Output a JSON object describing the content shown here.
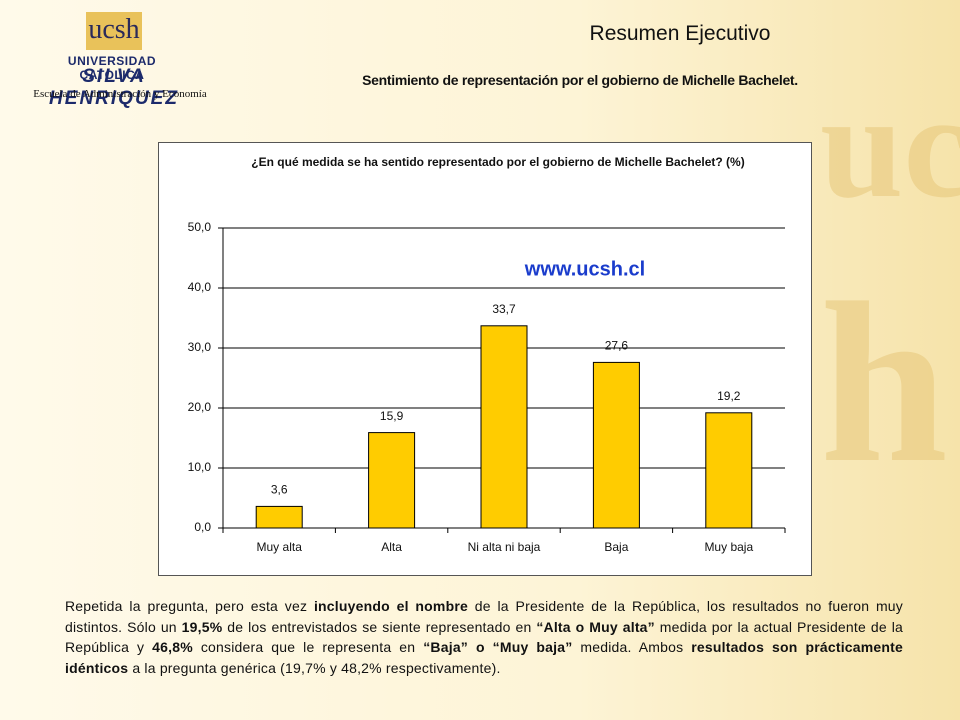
{
  "header": {
    "logo_mark": "ucsh",
    "university": "UNIVERSIDAD CATOLICA",
    "university_name": "SILVA HENRIQUEZ",
    "school": "Escuela de Administración y Economía",
    "title": "Resumen Ejecutivo",
    "subtitle": "Sentimiento de representación por el gobierno de Michelle Bachelet."
  },
  "chart_data": {
    "type": "bar",
    "title": "¿En qué medida se ha sentido representado por el gobierno de Michelle Bachelet? (%)",
    "watermark": "www.ucsh.cl",
    "categories": [
      "Muy alta",
      "Alta",
      "Ni alta ni baja",
      "Baja",
      "Muy baja"
    ],
    "values": [
      3.6,
      15.9,
      33.7,
      27.6,
      19.2
    ],
    "value_labels": [
      "3,6",
      "15,9",
      "33,7",
      "27,6",
      "19,2"
    ],
    "color": "#ffcc00",
    "ylim": [
      0,
      50
    ],
    "yticks": [
      {
        "value": 0,
        "label": "0,0"
      },
      {
        "value": 10,
        "label": "10,0"
      },
      {
        "value": 20,
        "label": "20,0"
      },
      {
        "value": 30,
        "label": "30,0"
      },
      {
        "value": 40,
        "label": "40,0"
      },
      {
        "value": 50,
        "label": "50,0"
      }
    ],
    "grid": true
  },
  "body": {
    "paragraph": [
      {
        "text": "Repetida la pregunta, pero esta vez ",
        "bold": false
      },
      {
        "text": "incluyendo el nombre",
        "bold": true
      },
      {
        "text": " de la Presidente de la República, los resultados no fueron muy distintos. Sólo un ",
        "bold": false
      },
      {
        "text": "19,5%",
        "bold": true
      },
      {
        "text": " de los entrevistados se siente representado en ",
        "bold": false
      },
      {
        "text": "“Alta o Muy alta”",
        "bold": true
      },
      {
        "text": " medida por la actual Presidente de la República y ",
        "bold": false
      },
      {
        "text": "46,8%",
        "bold": true
      },
      {
        "text": " considera que le representa en ",
        "bold": false
      },
      {
        "text": "“Baja” o “Muy baja”",
        "bold": true
      },
      {
        "text": " medida. Ambos ",
        "bold": false
      },
      {
        "text": "resultados son prácticamente idénticos",
        "bold": true
      },
      {
        "text": " a la pregunta genérica (19,7% y 48,2% respectivamente).",
        "bold": false
      }
    ]
  }
}
